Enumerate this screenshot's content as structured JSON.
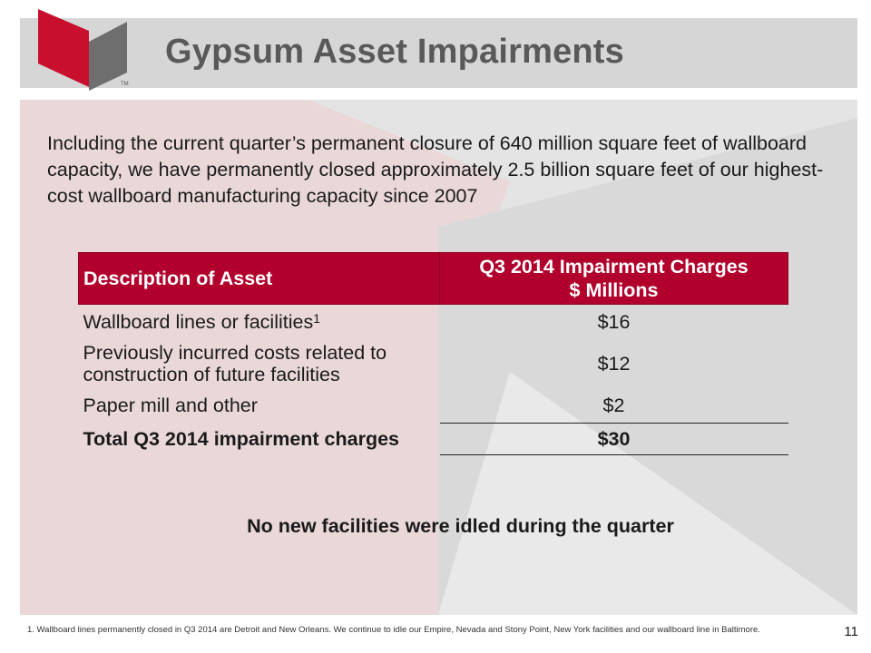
{
  "header": {
    "title": "Gypsum Asset Impairments"
  },
  "logo": {
    "trademark": "TM"
  },
  "intro": "Including the current quarter’s permanent closure of 640 million square feet of wallboard capacity, we have permanently closed approximately 2.5 billion square feet of our highest-cost wallboard manufacturing capacity since 2007",
  "table": {
    "headers": {
      "description": "Description of Asset",
      "charges_line1": "Q3 2014 Impairment Charges",
      "charges_line2": "$ Millions"
    },
    "rows": [
      {
        "description": "Wallboard lines or facilities",
        "footnote_ref": "1",
        "amount": "$16"
      },
      {
        "description_line1": "Previously incurred costs related to",
        "description_line2": "construction of future facilities",
        "amount": "$12"
      },
      {
        "description": "Paper mill and other",
        "amount": "$2"
      }
    ],
    "total": {
      "description": "Total Q3 2014 impairment charges",
      "amount": "$30"
    }
  },
  "note": "No new facilities were idled during the quarter",
  "footnote": "1. Wallboard lines permanently closed in Q3 2014 are Detroit and New Orleans.  We continue to idle our Empire, Nevada and Stony Point, New York facilities and our wallboard line in Baltimore.",
  "page_number": "11",
  "colors": {
    "accent": "#b0002b",
    "header_band": "#d6d6d6",
    "title_text": "#595959",
    "background_gray": "#e4e4e4",
    "background_pink": "#ead8d9"
  }
}
